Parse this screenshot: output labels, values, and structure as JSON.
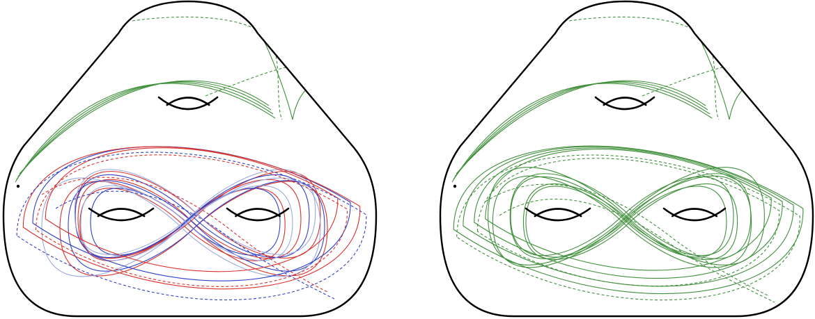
{
  "figure": {
    "panels": [
      {
        "name": "left",
        "curve_families": [
          {
            "name": "red-curves",
            "color": "#d9302a"
          },
          {
            "name": "blue-curves",
            "color": "#2f3fc8"
          },
          {
            "name": "light-blue-curves",
            "color": "#9aa8e0"
          },
          {
            "name": "green-curves",
            "color": "#3f8f3a"
          }
        ]
      },
      {
        "name": "right",
        "curve_families": [
          {
            "name": "green-curves",
            "color": "#3f8f3a"
          }
        ]
      }
    ],
    "outline_color": "#000000",
    "genus": 3,
    "basepoint_shown": true
  }
}
